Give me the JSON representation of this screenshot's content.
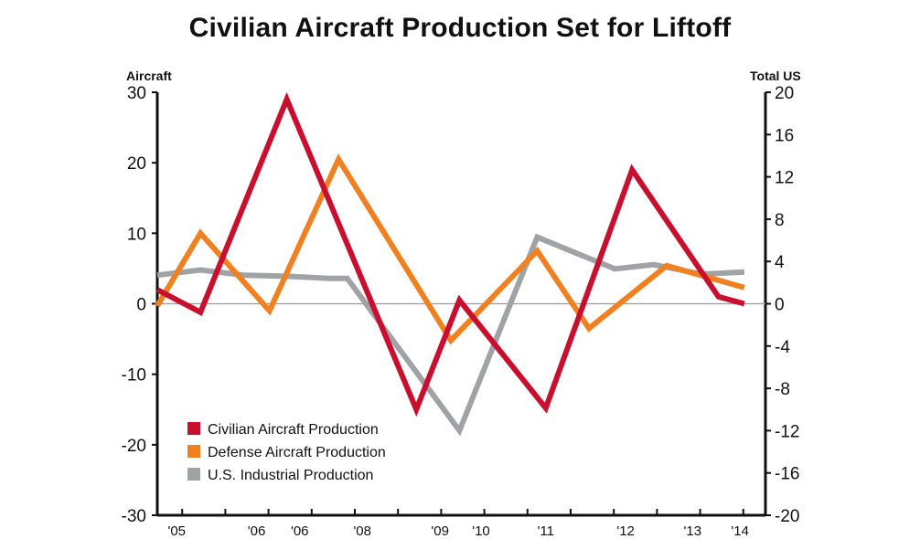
{
  "chart_data": {
    "type": "line",
    "title": "Civilian Aircraft Production Set for Liftoff",
    "ylabel_left": "Aircraft",
    "ylabel_right": "Total US",
    "ylim_left": [
      -30,
      30
    ],
    "ylim_right": [
      -20,
      20
    ],
    "yticks_left": [
      "30",
      "20",
      "10",
      "0",
      "-10",
      "-20",
      "-30"
    ],
    "yticks_right": [
      "20",
      "16",
      "12",
      "8",
      "4",
      "0",
      "-4",
      "-8",
      "-12",
      "-16",
      "-20"
    ],
    "x_tick_labels": [
      "'05",
      "'06",
      "'06",
      "'08",
      "'09",
      "'10",
      "'11",
      "'12",
      "'13",
      "'14"
    ],
    "x": [
      0,
      1,
      2,
      3,
      4,
      5,
      6,
      7,
      8,
      9,
      10,
      11,
      12,
      13,
      14
    ],
    "series": [
      {
        "name": "Civilian Aircraft Production",
        "axis": "left",
        "color": "#c8102e",
        "values": [
          2,
          -1.2,
          null,
          29,
          null,
          null,
          -15,
          0.5,
          null,
          -14.8,
          null,
          19,
          null,
          1,
          0
        ],
        "points": [
          [
            0,
            2
          ],
          [
            1,
            -1.2
          ],
          [
            3,
            29
          ],
          [
            6,
            -15
          ],
          [
            7,
            0.5
          ],
          [
            9,
            -14.8
          ],
          [
            11,
            19
          ],
          [
            13,
            1
          ],
          [
            13.6,
            0
          ]
        ]
      },
      {
        "name": "Defense Aircraft Production",
        "axis": "left",
        "color": "#f08020",
        "points": [
          [
            0,
            -0.3
          ],
          [
            1,
            10
          ],
          [
            2.6,
            -1
          ],
          [
            4.2,
            20.5
          ],
          [
            6.8,
            -5.2
          ],
          [
            8.8,
            7.5
          ],
          [
            10,
            -3.5
          ],
          [
            11.8,
            5.4
          ],
          [
            13.6,
            2.3
          ]
        ]
      },
      {
        "name": "U.S. Industrial Production",
        "axis": "right",
        "color": "#a0a3a6",
        "points": [
          [
            0,
            2.7
          ],
          [
            1,
            3.2
          ],
          [
            2,
            2.7
          ],
          [
            3,
            2.6
          ],
          [
            4,
            2.4
          ],
          [
            4.4,
            2.4
          ],
          [
            7,
            -12
          ],
          [
            8.8,
            6.3
          ],
          [
            10.6,
            3.3
          ],
          [
            11.5,
            3.7
          ],
          [
            12.6,
            2.8
          ],
          [
            13.6,
            3
          ]
        ]
      }
    ],
    "legend": [
      "Civilian Aircraft Production",
      "Defense Aircraft Production",
      "U.S. Industrial Production"
    ],
    "legend_position": "bottom-left",
    "zero_line": true,
    "grid": false
  }
}
